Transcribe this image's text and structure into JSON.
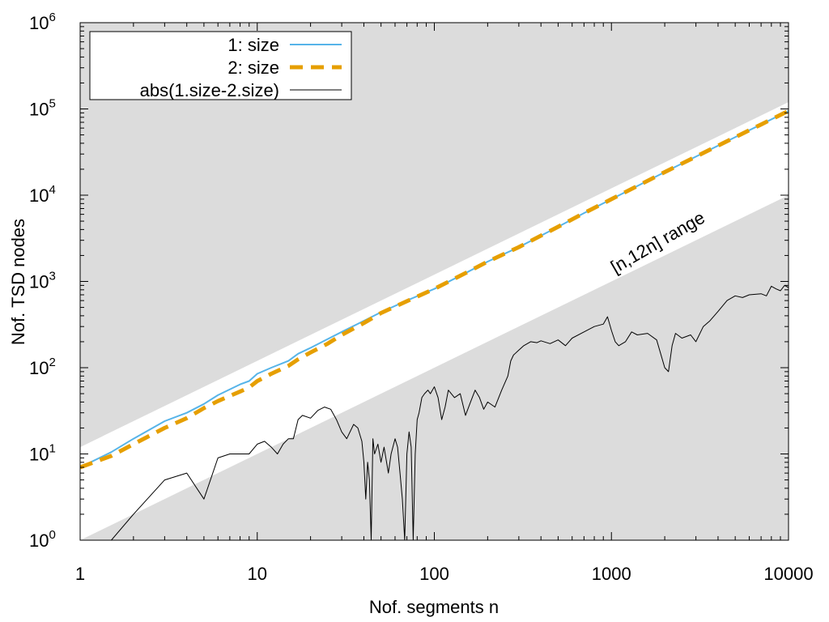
{
  "chart_data": {
    "type": "line",
    "xlabel": "Nof. segments n",
    "ylabel": "Nof. TSD nodes",
    "xscale": "log",
    "yscale": "log",
    "xlim": [
      1,
      10000
    ],
    "ylim": [
      1,
      1000000
    ],
    "x_tick_labels": [
      "1",
      "10",
      "100",
      "1000",
      "10000"
    ],
    "y_tick_labels": [
      {
        "base": "10",
        "exp": "0"
      },
      {
        "base": "10",
        "exp": "1"
      },
      {
        "base": "10",
        "exp": "2"
      },
      {
        "base": "10",
        "exp": "3"
      },
      {
        "base": "10",
        "exp": "4"
      },
      {
        "base": "10",
        "exp": "5"
      },
      {
        "base": "10",
        "exp": "6"
      }
    ],
    "legend_position": "top-left",
    "annotation": "[n,12n] range",
    "shaded_region": {
      "outside_of": "[n, 12n]",
      "color": "#dcdcdc"
    },
    "series": [
      {
        "name": "1: size",
        "color": "#56b4e9",
        "style": "solid",
        "x": [
          1,
          1.5,
          2,
          3,
          4,
          5,
          6,
          8,
          9,
          10,
          12,
          15,
          17,
          20,
          25,
          30,
          40,
          50,
          70,
          100,
          150,
          200,
          300,
          500,
          700,
          1000,
          2000,
          3000,
          5000,
          7000,
          10000
        ],
        "y": [
          7,
          10.5,
          15,
          24,
          30,
          38,
          48,
          64,
          70,
          85,
          100,
          120,
          145,
          170,
          215,
          260,
          350,
          440,
          600,
          820,
          1250,
          1700,
          2500,
          4300,
          6200,
          9000,
          18500,
          28000,
          47000,
          66000,
          95000
        ]
      },
      {
        "name": "2: size",
        "color": "#e69f00",
        "style": "dashed",
        "x": [
          1,
          1.5,
          2,
          3,
          4,
          5,
          6,
          8,
          9,
          10,
          12,
          15,
          17,
          20,
          25,
          30,
          40,
          50,
          70,
          100,
          150,
          200,
          300,
          500,
          700,
          1000,
          2000,
          3000,
          5000,
          7000,
          10000
        ],
        "y": [
          7,
          9.5,
          13,
          20,
          26,
          34,
          41,
          53,
          59,
          70,
          85,
          105,
          125,
          150,
          190,
          240,
          330,
          430,
          590,
          820,
          1250,
          1700,
          2500,
          4300,
          6200,
          9000,
          18500,
          28000,
          47000,
          66000,
          95000
        ]
      },
      {
        "name": "abs(1.size-2.size)",
        "color": "#000000",
        "style": "solid",
        "x": [
          1.5,
          2,
          3,
          4,
          5,
          6,
          7,
          9,
          10,
          11,
          12,
          13,
          14,
          15,
          16,
          17,
          18,
          20,
          22,
          24,
          26,
          28,
          30,
          32,
          35,
          37,
          39,
          40,
          41,
          42,
          43,
          44,
          45,
          46,
          48,
          50,
          52,
          55,
          57,
          60,
          62,
          64,
          66,
          68,
          70,
          72,
          74,
          76,
          78,
          80,
          82,
          85,
          88,
          92,
          95,
          100,
          105,
          110,
          115,
          120,
          130,
          140,
          150,
          160,
          170,
          180,
          190,
          200,
          220,
          240,
          260,
          270,
          280,
          300,
          320,
          350,
          380,
          400,
          450,
          500,
          550,
          600,
          700,
          800,
          900,
          950,
          1000,
          1050,
          1100,
          1200,
          1300,
          1400,
          1600,
          1800,
          2000,
          2100,
          2200,
          2300,
          2500,
          2800,
          3000,
          3300,
          3600,
          4000,
          4500,
          5000,
          5500,
          6000,
          7000,
          7500,
          8000,
          8500,
          9000,
          9500,
          10000
        ],
        "y": [
          1,
          2,
          5,
          6,
          3,
          9,
          10,
          10,
          13,
          14,
          12,
          10,
          13,
          15,
          15,
          25,
          28,
          26,
          32,
          35,
          33,
          25,
          18,
          15,
          22,
          20,
          14,
          8,
          3,
          8,
          5,
          1,
          15,
          10,
          13,
          8,
          12,
          6,
          10,
          15,
          12,
          6,
          3,
          1,
          10,
          18,
          12,
          1,
          10,
          25,
          30,
          45,
          50,
          55,
          50,
          60,
          45,
          25,
          35,
          55,
          45,
          50,
          28,
          40,
          55,
          45,
          33,
          40,
          35,
          55,
          80,
          120,
          140,
          160,
          180,
          200,
          195,
          205,
          190,
          210,
          180,
          220,
          260,
          300,
          320,
          390,
          270,
          200,
          180,
          200,
          260,
          240,
          250,
          210,
          100,
          90,
          180,
          250,
          220,
          240,
          200,
          300,
          350,
          450,
          600,
          680,
          650,
          700,
          720,
          680,
          880,
          820,
          780,
          900,
          850
        ]
      }
    ]
  }
}
